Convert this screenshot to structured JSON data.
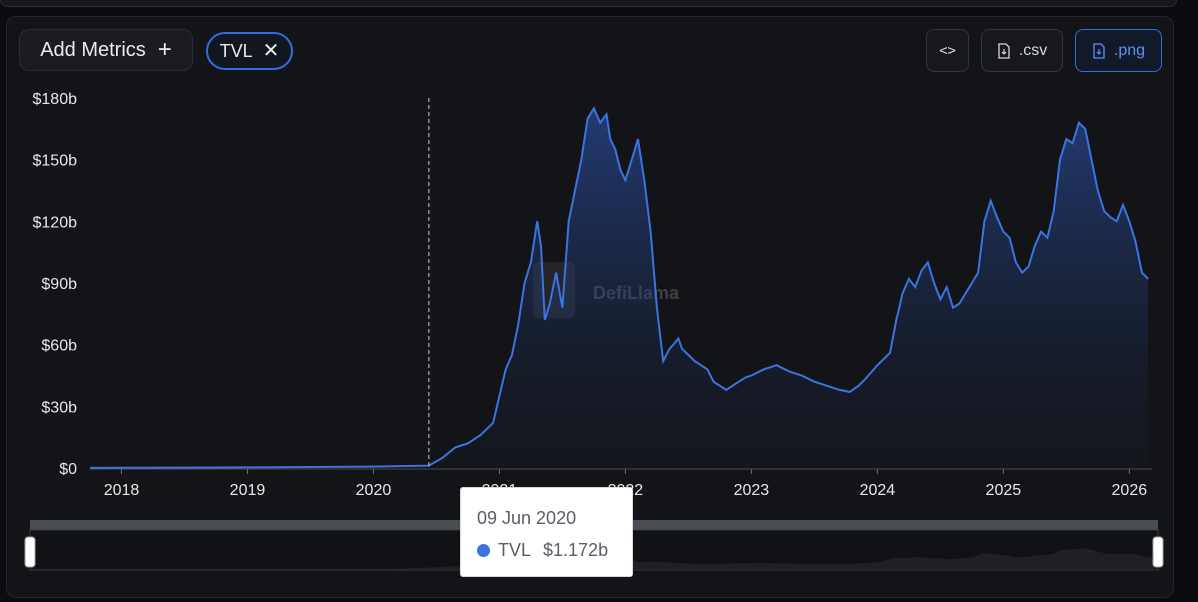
{
  "toolbar": {
    "add_metrics_label": "Add Metrics",
    "add_icon": "plus-icon",
    "metric_chip_label": "TVL",
    "remove_icon": "close-icon",
    "embed_label": "<>",
    "csv_label": ".csv",
    "png_label": ".png"
  },
  "colors": {
    "accent": "#2f6fe0",
    "line": "#3b74e0",
    "background": "#131417"
  },
  "watermark": "DefiLlama",
  "tooltip": {
    "date": "09 Jun 2020",
    "series": "TVL",
    "value": "$1.172b"
  },
  "chart_data": {
    "type": "area",
    "title": "",
    "xlabel": "",
    "ylabel": "",
    "ylim": [
      0,
      180
    ],
    "y_unit": "billions USD",
    "y_ticks": [
      "$0",
      "$30b",
      "$60b",
      "$90b",
      "$120b",
      "$150b",
      "$180b"
    ],
    "x_ticks": [
      "2018",
      "2019",
      "2020",
      "2021",
      "2022",
      "2023",
      "2024",
      "2025",
      "2026"
    ],
    "xlim": [
      2017.75,
      2026.18
    ],
    "grid": false,
    "legend": "none",
    "crosshair_x": 2020.44,
    "series": [
      {
        "name": "TVL",
        "x": [
          2017.75,
          2018.0,
          2018.5,
          2019.0,
          2019.5,
          2020.0,
          2020.2,
          2020.44,
          2020.55,
          2020.65,
          2020.75,
          2020.85,
          2020.95,
          2021.0,
          2021.05,
          2021.1,
          2021.15,
          2021.2,
          2021.25,
          2021.3,
          2021.33,
          2021.36,
          2021.4,
          2021.45,
          2021.5,
          2021.55,
          2021.6,
          2021.65,
          2021.7,
          2021.75,
          2021.8,
          2021.85,
          2021.88,
          2021.92,
          2021.96,
          2022.0,
          2022.05,
          2022.1,
          2022.15,
          2022.2,
          2022.25,
          2022.3,
          2022.35,
          2022.38,
          2022.42,
          2022.45,
          2022.5,
          2022.55,
          2022.6,
          2022.65,
          2022.7,
          2022.75,
          2022.8,
          2022.85,
          2022.9,
          2022.95,
          2023.0,
          2023.1,
          2023.2,
          2023.3,
          2023.4,
          2023.5,
          2023.6,
          2023.7,
          2023.78,
          2023.85,
          2023.9,
          2024.0,
          2024.1,
          2024.15,
          2024.2,
          2024.25,
          2024.3,
          2024.35,
          2024.4,
          2024.45,
          2024.5,
          2024.55,
          2024.6,
          2024.65,
          2024.7,
          2024.75,
          2024.8,
          2024.85,
          2024.9,
          2024.95,
          2025.0,
          2025.05,
          2025.1,
          2025.15,
          2025.2,
          2025.25,
          2025.3,
          2025.35,
          2025.4,
          2025.45,
          2025.5,
          2025.55,
          2025.6,
          2025.65,
          2025.7,
          2025.75,
          2025.8,
          2025.85,
          2025.9,
          2025.95,
          2026.0,
          2026.05,
          2026.1,
          2026.15
        ],
        "values": [
          0.05,
          0.1,
          0.2,
          0.3,
          0.5,
          0.7,
          0.9,
          1.17,
          5,
          10,
          12,
          16,
          22,
          35,
          48,
          55,
          70,
          90,
          100,
          120,
          108,
          72,
          80,
          95,
          78,
          120,
          135,
          150,
          170,
          175,
          168,
          172,
          160,
          155,
          145,
          140,
          150,
          160,
          140,
          115,
          78,
          52,
          58,
          60,
          63,
          58,
          55,
          52,
          50,
          48,
          42,
          40,
          38,
          40,
          42,
          44,
          45,
          48,
          50,
          47,
          45,
          42,
          40,
          38,
          37,
          40,
          43,
          50,
          56,
          72,
          85,
          92,
          88,
          96,
          100,
          90,
          82,
          88,
          78,
          80,
          85,
          90,
          95,
          120,
          130,
          122,
          115,
          112,
          100,
          95,
          98,
          108,
          115,
          112,
          125,
          150,
          160,
          158,
          168,
          165,
          150,
          135,
          125,
          122,
          120,
          128,
          120,
          110,
          95,
          92
        ]
      }
    ]
  }
}
